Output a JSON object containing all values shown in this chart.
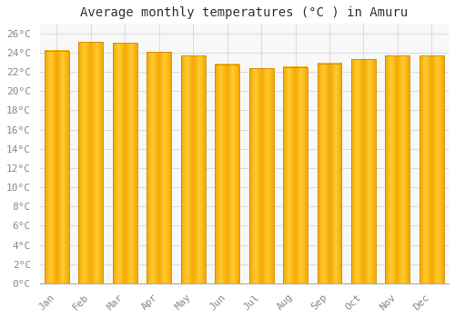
{
  "title": "Average monthly temperatures (°C ) in Amuru",
  "months": [
    "Jan",
    "Feb",
    "Mar",
    "Apr",
    "May",
    "Jun",
    "Jul",
    "Aug",
    "Sep",
    "Oct",
    "Nov",
    "Dec"
  ],
  "temperatures": [
    24.2,
    25.1,
    25.0,
    24.1,
    23.7,
    22.8,
    22.4,
    22.5,
    22.9,
    23.3,
    23.7,
    23.7
  ],
  "bar_color_left": "#F5A800",
  "bar_color_mid": "#FFCC33",
  "bar_color_right": "#F5A800",
  "bar_edge_color": "#CC8800",
  "background_color": "#FFFFFF",
  "plot_bg_color": "#F8F8F8",
  "grid_color": "#DDDDDD",
  "ylim": [
    0,
    27
  ],
  "yticks": [
    0,
    2,
    4,
    6,
    8,
    10,
    12,
    14,
    16,
    18,
    20,
    22,
    24,
    26
  ],
  "ytick_labels": [
    "0°C",
    "2°C",
    "4°C",
    "6°C",
    "8°C",
    "10°C",
    "12°C",
    "14°C",
    "16°C",
    "18°C",
    "20°C",
    "22°C",
    "24°C",
    "26°C"
  ],
  "title_fontsize": 10,
  "tick_fontsize": 8,
  "font_family": "monospace",
  "tick_color": "#888888",
  "bar_width": 0.72
}
